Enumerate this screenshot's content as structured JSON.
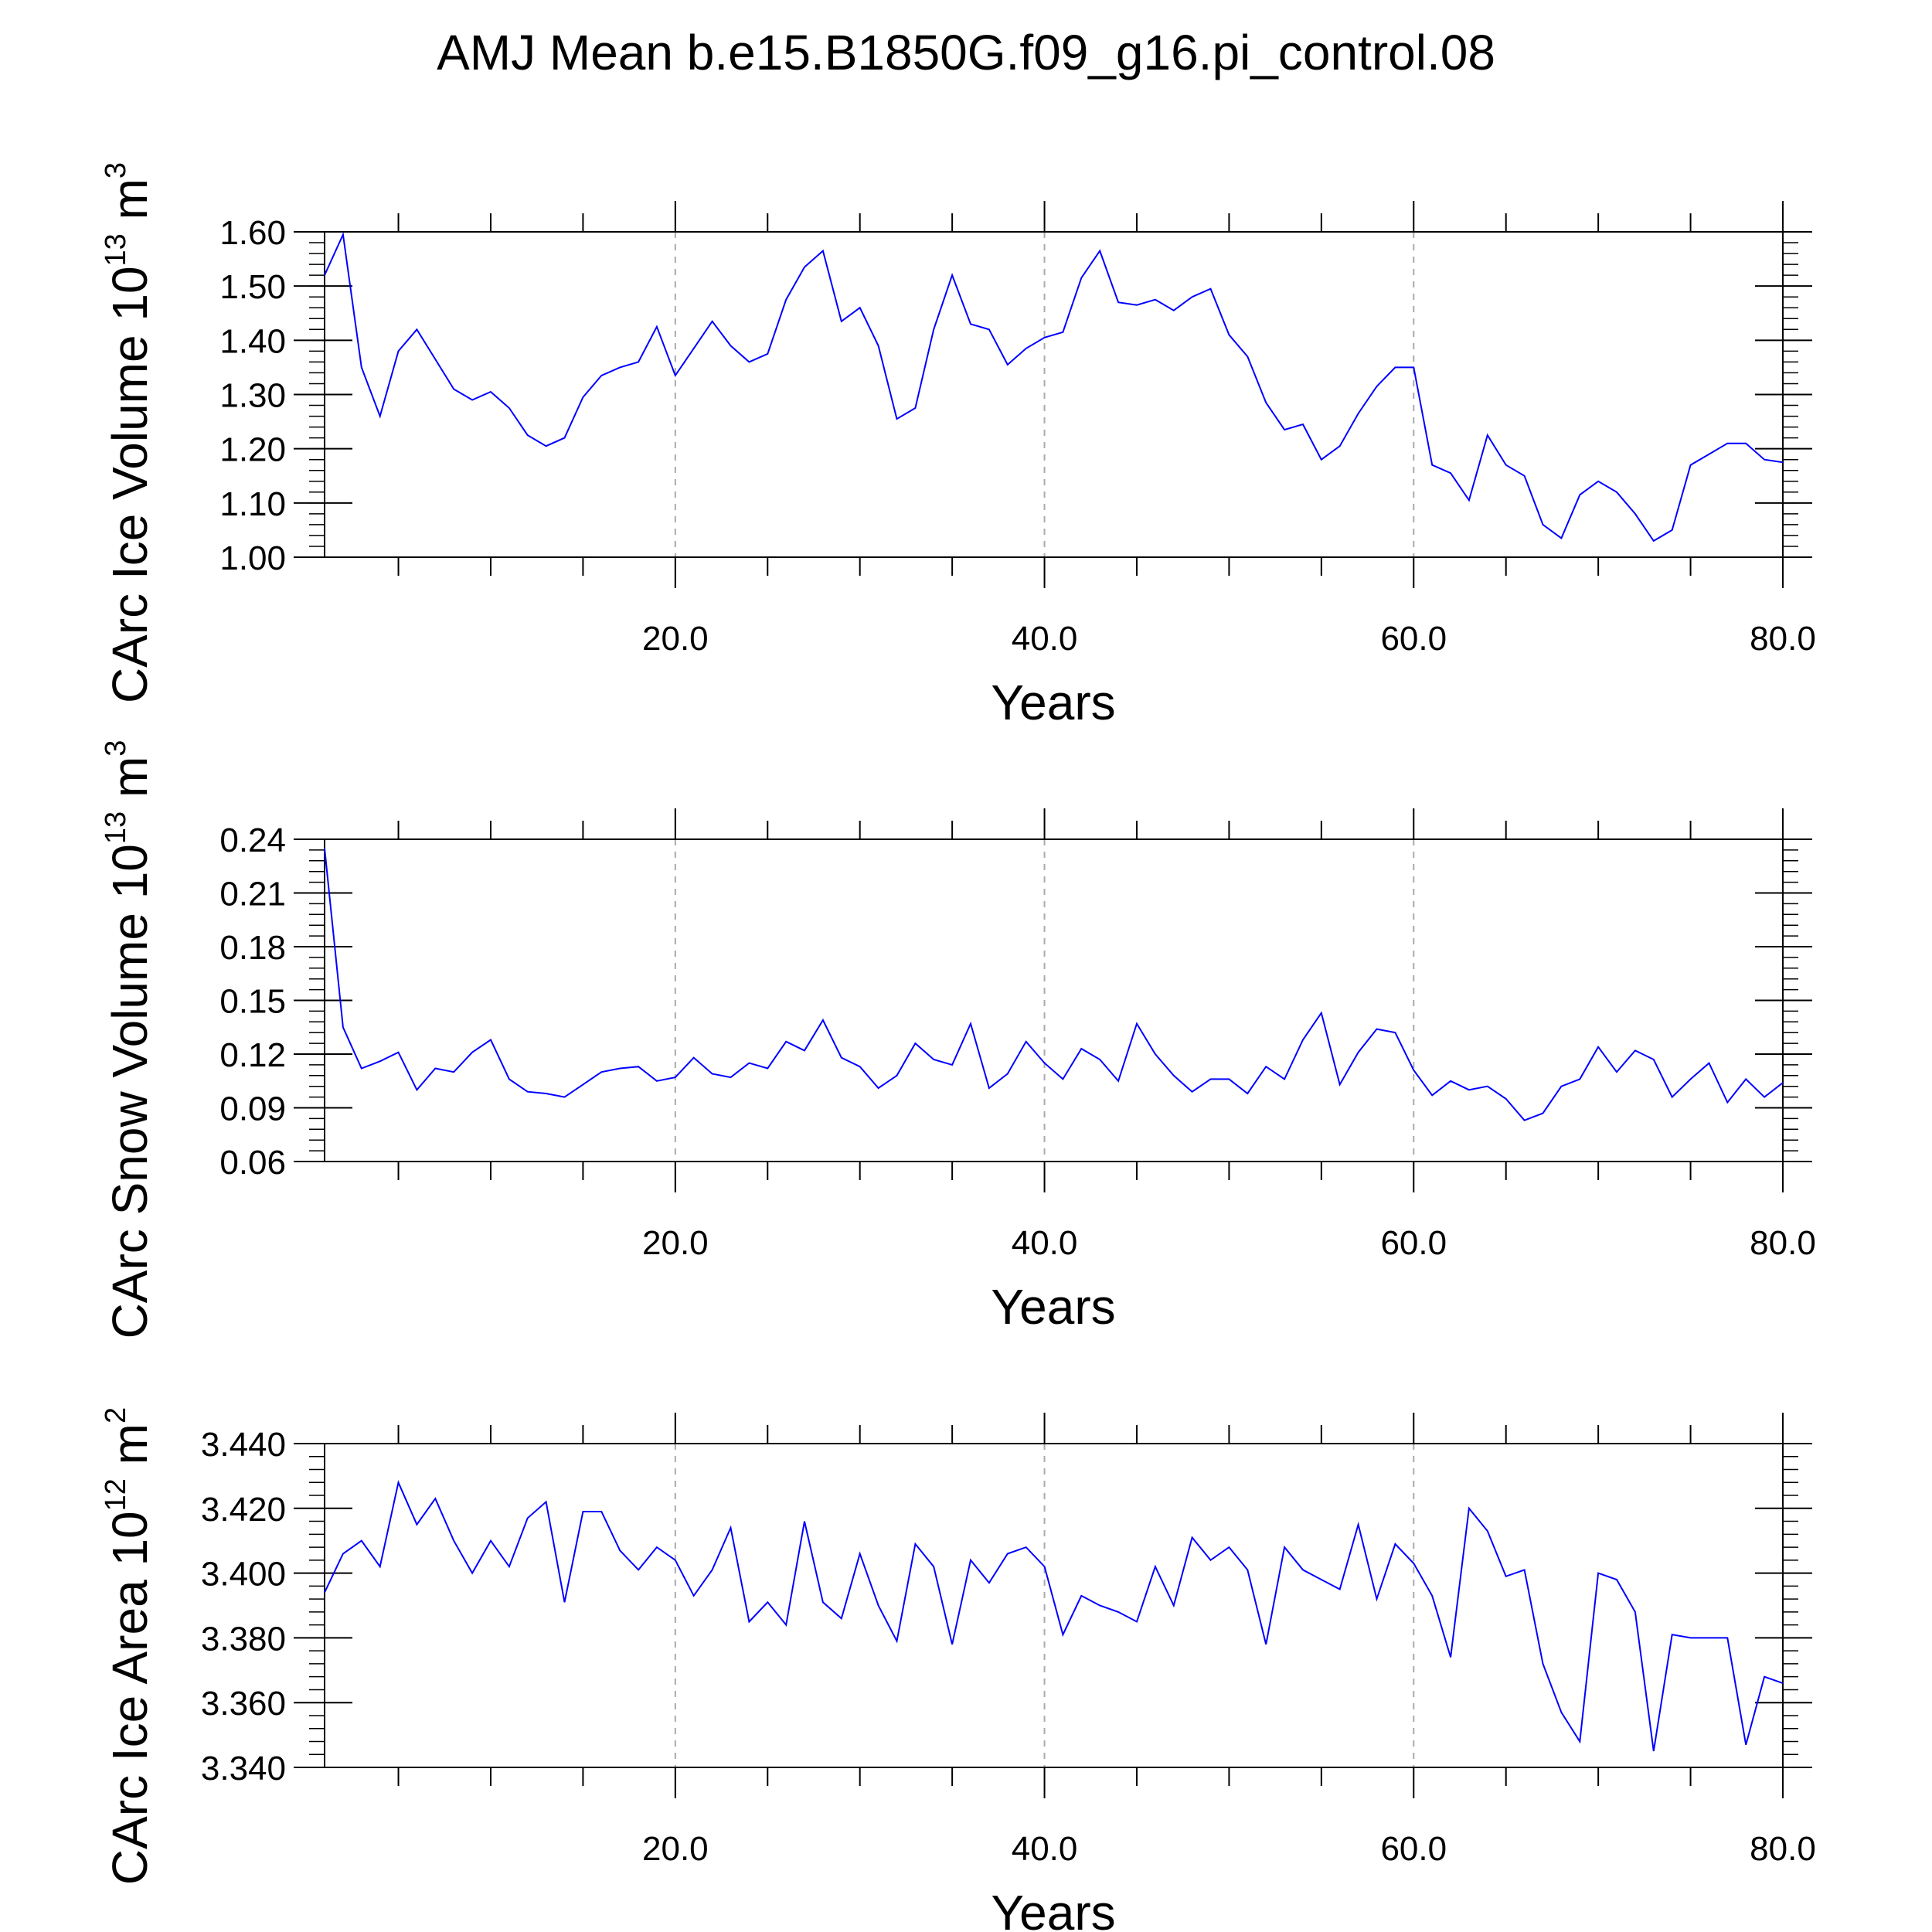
{
  "title": "AMJ Mean b.e15.B1850G.f09_g16.pi_control.08",
  "series_color": "#0000ff",
  "chart_data": [
    {
      "type": "line",
      "name": "ice-volume",
      "ylabel_main": "CArc Ice Volume 10",
      "ylabel_exp": "13",
      "ylabel_unit": " m",
      "ylabel_unit_exp": "3",
      "xlabel": "Years",
      "xlim": [
        1,
        80
      ],
      "ylim": [
        1.0,
        1.6
      ],
      "xticks": [
        20,
        40,
        60,
        80
      ],
      "xtick_labels": [
        "20.0",
        "40.0",
        "60.0",
        "80.0"
      ],
      "yticks": [
        1.0,
        1.1,
        1.2,
        1.3,
        1.4,
        1.5,
        1.6
      ],
      "ytick_labels": [
        "1.00",
        "1.10",
        "1.20",
        "1.30",
        "1.40",
        "1.50",
        "1.60"
      ],
      "y_minor_step": 0.02,
      "x_minor_step": 5,
      "grid_x": [
        20,
        40,
        60
      ],
      "x": [
        1,
        2,
        3,
        4,
        5,
        6,
        7,
        8,
        9,
        10,
        11,
        12,
        13,
        14,
        15,
        16,
        17,
        18,
        19,
        20,
        21,
        22,
        23,
        24,
        25,
        26,
        27,
        28,
        29,
        30,
        31,
        32,
        33,
        34,
        35,
        36,
        37,
        38,
        39,
        40,
        41,
        42,
        43,
        44,
        45,
        46,
        47,
        48,
        49,
        50,
        51,
        52,
        53,
        54,
        55,
        56,
        57,
        58,
        59,
        60,
        61,
        62,
        63,
        64,
        65,
        66,
        67,
        68,
        69,
        70,
        71,
        72,
        73,
        74,
        75,
        76,
        77,
        78,
        79,
        80
      ],
      "values": [
        1.52,
        1.595,
        1.35,
        1.26,
        1.38,
        1.42,
        1.365,
        1.31,
        1.29,
        1.305,
        1.275,
        1.225,
        1.205,
        1.22,
        1.295,
        1.335,
        1.35,
        1.36,
        1.425,
        1.335,
        1.385,
        1.435,
        1.39,
        1.36,
        1.375,
        1.475,
        1.535,
        1.565,
        1.435,
        1.46,
        1.39,
        1.255,
        1.275,
        1.42,
        1.52,
        1.43,
        1.42,
        1.355,
        1.385,
        1.405,
        1.415,
        1.515,
        1.565,
        1.47,
        1.465,
        1.475,
        1.455,
        1.48,
        1.495,
        1.41,
        1.37,
        1.285,
        1.235,
        1.245,
        1.18,
        1.205,
        1.265,
        1.315,
        1.35,
        1.35,
        1.17,
        1.155,
        1.105,
        1.225,
        1.17,
        1.15,
        1.06,
        1.035,
        1.115,
        1.14,
        1.12,
        1.08,
        1.03,
        1.05,
        1.17,
        1.19,
        1.21,
        1.21,
        1.18,
        1.175
      ]
    },
    {
      "type": "line",
      "name": "snow-volume",
      "ylabel_main": "CArc Snow Volume 10",
      "ylabel_exp": "13",
      "ylabel_unit": " m",
      "ylabel_unit_exp": "3",
      "xlabel": "Years",
      "xlim": [
        1,
        80
      ],
      "ylim": [
        0.06,
        0.24
      ],
      "xticks": [
        20,
        40,
        60,
        80
      ],
      "xtick_labels": [
        "20.0",
        "40.0",
        "60.0",
        "80.0"
      ],
      "yticks": [
        0.06,
        0.09,
        0.12,
        0.15,
        0.18,
        0.21,
        0.24
      ],
      "ytick_labels": [
        "0.06",
        "0.09",
        "0.12",
        "0.15",
        "0.18",
        "0.21",
        "0.24"
      ],
      "y_minor_step": 0.006,
      "x_minor_step": 5,
      "grid_x": [
        20,
        40,
        60
      ],
      "x": [
        1,
        2,
        3,
        4,
        5,
        6,
        7,
        8,
        9,
        10,
        11,
        12,
        13,
        14,
        15,
        16,
        17,
        18,
        19,
        20,
        21,
        22,
        23,
        24,
        25,
        26,
        27,
        28,
        29,
        30,
        31,
        32,
        33,
        34,
        35,
        36,
        37,
        38,
        39,
        40,
        41,
        42,
        43,
        44,
        45,
        46,
        47,
        48,
        49,
        50,
        51,
        52,
        53,
        54,
        55,
        56,
        57,
        58,
        59,
        60,
        61,
        62,
        63,
        64,
        65,
        66,
        67,
        68,
        69,
        70,
        71,
        72,
        73,
        74,
        75,
        76,
        77,
        78,
        79,
        80
      ],
      "values": [
        0.235,
        0.135,
        0.112,
        0.116,
        0.121,
        0.1,
        0.112,
        0.11,
        0.121,
        0.128,
        0.106,
        0.099,
        0.098,
        0.096,
        0.103,
        0.11,
        0.112,
        0.113,
        0.105,
        0.107,
        0.118,
        0.109,
        0.107,
        0.115,
        0.112,
        0.127,
        0.122,
        0.139,
        0.118,
        0.113,
        0.101,
        0.108,
        0.126,
        0.117,
        0.114,
        0.137,
        0.101,
        0.109,
        0.127,
        0.115,
        0.106,
        0.123,
        0.117,
        0.105,
        0.137,
        0.12,
        0.108,
        0.099,
        0.106,
        0.106,
        0.098,
        0.113,
        0.106,
        0.128,
        0.143,
        0.103,
        0.121,
        0.134,
        0.132,
        0.111,
        0.097,
        0.105,
        0.1,
        0.102,
        0.095,
        0.083,
        0.087,
        0.102,
        0.106,
        0.124,
        0.11,
        0.122,
        0.117,
        0.096,
        0.106,
        0.115,
        0.093,
        0.106,
        0.096,
        0.104
      ]
    },
    {
      "type": "line",
      "name": "ice-area",
      "ylabel_main": "CArc Ice Area 10",
      "ylabel_exp": "12",
      "ylabel_unit": " m",
      "ylabel_unit_exp": "2",
      "xlabel": "Years",
      "xlim": [
        1,
        80
      ],
      "ylim": [
        3.34,
        3.44
      ],
      "xticks": [
        20,
        40,
        60,
        80
      ],
      "xtick_labels": [
        "20.0",
        "40.0",
        "60.0",
        "80.0"
      ],
      "yticks": [
        3.34,
        3.36,
        3.38,
        3.4,
        3.42,
        3.44
      ],
      "ytick_labels": [
        "3.340",
        "3.360",
        "3.380",
        "3.400",
        "3.420",
        "3.440"
      ],
      "y_minor_step": 0.004,
      "x_minor_step": 5,
      "grid_x": [
        20,
        40,
        60
      ],
      "x": [
        1,
        2,
        3,
        4,
        5,
        6,
        7,
        8,
        9,
        10,
        11,
        12,
        13,
        14,
        15,
        16,
        17,
        18,
        19,
        20,
        21,
        22,
        23,
        24,
        25,
        26,
        27,
        28,
        29,
        30,
        31,
        32,
        33,
        34,
        35,
        36,
        37,
        38,
        39,
        40,
        41,
        42,
        43,
        44,
        45,
        46,
        47,
        48,
        49,
        50,
        51,
        52,
        53,
        54,
        55,
        56,
        57,
        58,
        59,
        60,
        61,
        62,
        63,
        64,
        65,
        66,
        67,
        68,
        69,
        70,
        71,
        72,
        73,
        74,
        75,
        76,
        77,
        78,
        79,
        80
      ],
      "values": [
        3.394,
        3.406,
        3.41,
        3.402,
        3.428,
        3.415,
        3.423,
        3.41,
        3.4,
        3.41,
        3.402,
        3.417,
        3.422,
        3.391,
        3.419,
        3.419,
        3.407,
        3.401,
        3.408,
        3.404,
        3.393,
        3.401,
        3.414,
        3.385,
        3.391,
        3.384,
        3.416,
        3.391,
        3.386,
        3.406,
        3.39,
        3.379,
        3.409,
        3.402,
        3.378,
        3.404,
        3.397,
        3.406,
        3.408,
        3.402,
        3.381,
        3.393,
        3.39,
        3.388,
        3.385,
        3.402,
        3.39,
        3.411,
        3.404,
        3.408,
        3.401,
        3.378,
        3.408,
        3.401,
        3.398,
        3.395,
        3.415,
        3.392,
        3.409,
        3.403,
        3.393,
        3.374,
        3.42,
        3.413,
        3.399,
        3.401,
        3.372,
        3.357,
        3.348,
        3.4,
        3.398,
        3.388,
        3.345,
        3.381,
        3.38,
        3.38,
        3.38,
        3.347,
        3.368,
        3.366
      ]
    }
  ]
}
